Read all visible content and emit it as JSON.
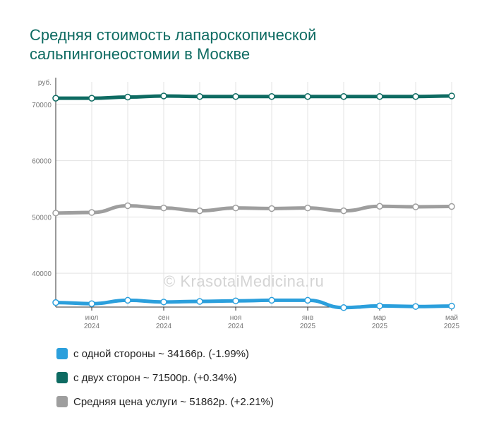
{
  "title_lines": [
    "Средняя стоимость лапароскопической",
    "сальпингонеостомии в Москве"
  ],
  "watermark": "© KrasotaiMedicina.ru",
  "chart_data": {
    "type": "line",
    "ylabel": "руб.",
    "ylim": [
      34000,
      74000
    ],
    "y_ticks": [
      "40000",
      "50000",
      "60000",
      "70000"
    ],
    "y_tick_values": [
      40000,
      50000,
      60000,
      70000
    ],
    "x_ticks": [
      {
        "label": "июл",
        "year": "2024",
        "idx": 1
      },
      {
        "label": "сен",
        "year": "2024",
        "idx": 3
      },
      {
        "label": "ноя",
        "year": "2024",
        "idx": 5
      },
      {
        "label": "янв",
        "year": "2025",
        "idx": 7
      },
      {
        "label": "мар",
        "year": "2025",
        "idx": 9
      },
      {
        "label": "май",
        "year": "2025",
        "idx": 11
      }
    ],
    "grid": true,
    "series": [
      {
        "name": "с двух сторон",
        "color": "#0e6b62",
        "values": [
          71100,
          71100,
          71300,
          71500,
          71400,
          71400,
          71400,
          71400,
          71400,
          71400,
          71400,
          71500
        ]
      },
      {
        "name": "Средняя цена услуги",
        "color": "#9e9e9e",
        "values": [
          50700,
          50800,
          52000,
          51600,
          51100,
          51600,
          51500,
          51600,
          51100,
          51900,
          51800,
          51862
        ]
      },
      {
        "name": "с одной стороны",
        "color": "#2b9fdc",
        "values": [
          34800,
          34600,
          35200,
          34900,
          35000,
          35100,
          35200,
          35200,
          33900,
          34200,
          34100,
          34166
        ]
      }
    ]
  },
  "legend": [
    {
      "color": "#2b9fdc",
      "label": "с одной стороны ~ 34166р. (-1.99%)"
    },
    {
      "color": "#0e6b62",
      "label": "с двух сторон ~ 71500р. (+0.34%)"
    },
    {
      "color": "#9e9e9e",
      "label": "Средняя цена услуги ~ 51862р. (+2.21%)"
    }
  ]
}
